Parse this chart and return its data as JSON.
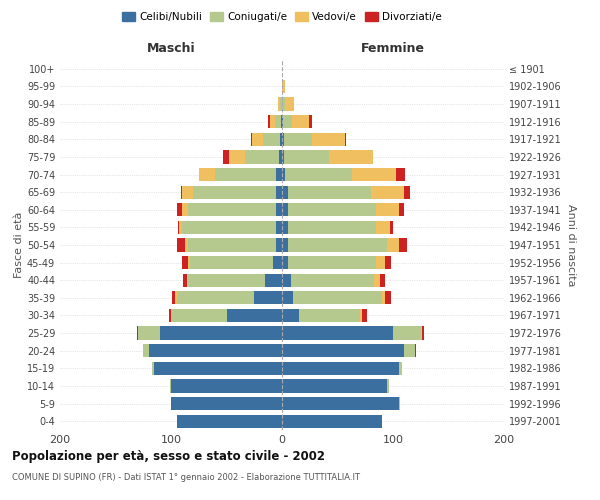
{
  "age_groups": [
    "0-4",
    "5-9",
    "10-14",
    "15-19",
    "20-24",
    "25-29",
    "30-34",
    "35-39",
    "40-44",
    "45-49",
    "50-54",
    "55-59",
    "60-64",
    "65-69",
    "70-74",
    "75-79",
    "80-84",
    "85-89",
    "90-94",
    "95-99",
    "100+"
  ],
  "birth_years": [
    "1997-2001",
    "1992-1996",
    "1987-1991",
    "1982-1986",
    "1977-1981",
    "1972-1976",
    "1967-1971",
    "1962-1966",
    "1957-1961",
    "1952-1956",
    "1947-1951",
    "1942-1946",
    "1937-1941",
    "1932-1936",
    "1927-1931",
    "1922-1926",
    "1917-1921",
    "1912-1916",
    "1907-1911",
    "1902-1906",
    "≤ 1901"
  ],
  "maschi": {
    "celibi": [
      95,
      100,
      100,
      115,
      120,
      110,
      50,
      25,
      15,
      8,
      5,
      5,
      5,
      5,
      5,
      3,
      2,
      1,
      0,
      0,
      0
    ],
    "coniugati": [
      0,
      0,
      1,
      2,
      5,
      20,
      50,
      70,
      70,
      75,
      80,
      85,
      80,
      75,
      55,
      30,
      15,
      5,
      2,
      0,
      0
    ],
    "vedovi": [
      0,
      0,
      0,
      0,
      0,
      0,
      0,
      1,
      1,
      2,
      2,
      3,
      5,
      10,
      15,
      15,
      10,
      5,
      2,
      0,
      0
    ],
    "divorziati": [
      0,
      0,
      0,
      0,
      0,
      1,
      2,
      3,
      3,
      5,
      8,
      1,
      5,
      1,
      0,
      5,
      1,
      2,
      0,
      0,
      0
    ]
  },
  "femmine": {
    "nubili": [
      90,
      105,
      95,
      105,
      110,
      100,
      15,
      10,
      8,
      5,
      5,
      5,
      5,
      5,
      3,
      2,
      2,
      1,
      0,
      0,
      0
    ],
    "coniugate": [
      0,
      1,
      1,
      3,
      10,
      25,
      55,
      80,
      75,
      80,
      90,
      80,
      80,
      75,
      60,
      40,
      25,
      8,
      3,
      0,
      0
    ],
    "vedove": [
      0,
      0,
      0,
      0,
      0,
      1,
      2,
      3,
      5,
      8,
      10,
      12,
      20,
      30,
      40,
      40,
      30,
      15,
      8,
      3,
      0
    ],
    "divorziate": [
      0,
      0,
      0,
      0,
      1,
      2,
      5,
      5,
      5,
      5,
      8,
      3,
      5,
      5,
      8,
      0,
      1,
      3,
      0,
      0,
      0
    ]
  },
  "colors": {
    "celibi": "#3b6fa0",
    "coniugati": "#b5c98e",
    "vedovi": "#f0c060",
    "divorziati": "#cc2222"
  },
  "xlim": 200,
  "title": "Popolazione per età, sesso e stato civile - 2002",
  "subtitle": "COMUNE DI SUPINO (FR) - Dati ISTAT 1° gennaio 2002 - Elaborazione TUTTITALIA.IT",
  "ylabel_left": "Fasce di età",
  "ylabel_right": "Anni di nascita",
  "xlabel_maschi": "Maschi",
  "xlabel_femmine": "Femmine",
  "legend_labels": [
    "Celibi/Nubili",
    "Coniugati/e",
    "Vedovi/e",
    "Divorziati/e"
  ],
  "background_color": "#ffffff",
  "grid_color": "#cccccc"
}
